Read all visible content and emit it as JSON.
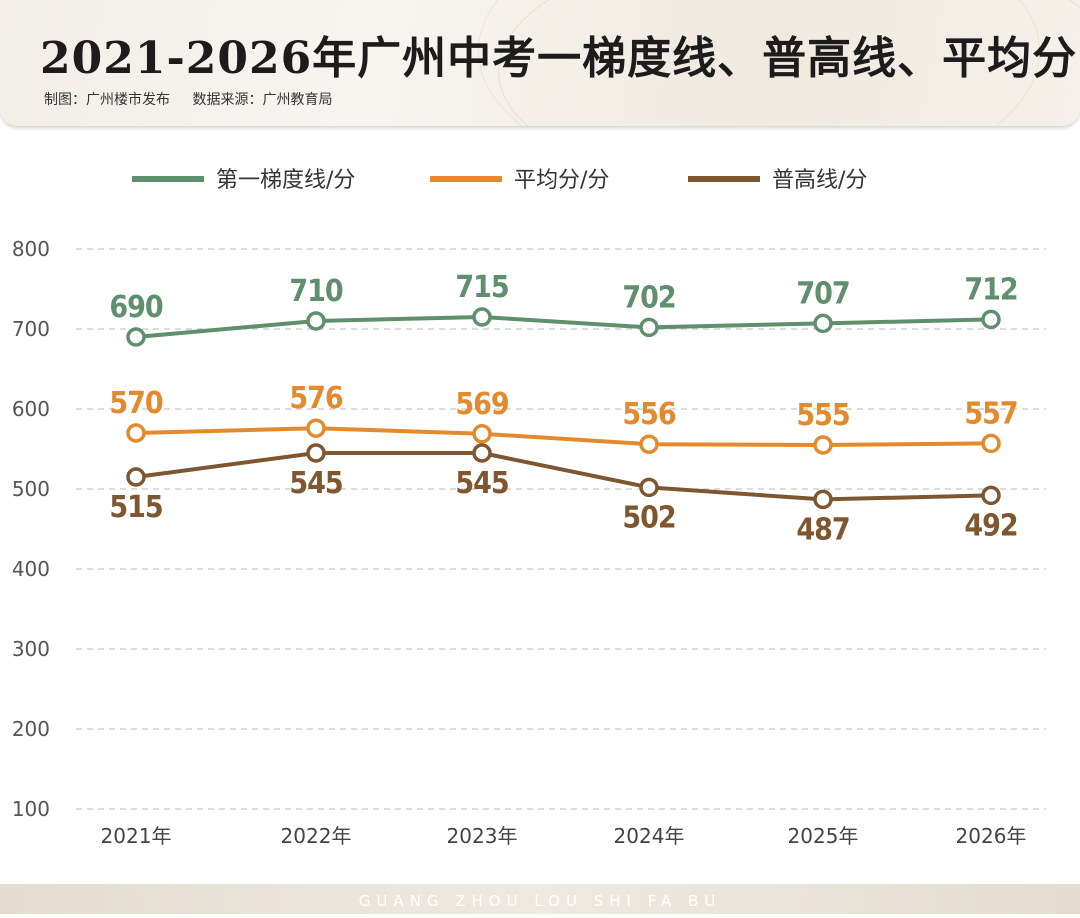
{
  "header": {
    "title": "2021-2026年广州中考一梯度线、普高线、平均分",
    "credit": "制图：广州楼市发布",
    "source": "数据来源：广州教育局"
  },
  "footer": {
    "text": "GUANG ZHOU LOU SHI FA BU"
  },
  "chart_data": {
    "type": "line",
    "categories": [
      "2021年",
      "2022年",
      "2023年",
      "2024年",
      "2025年",
      "2026年"
    ],
    "ylim": [
      100,
      800
    ],
    "yticks": [
      800,
      700,
      600,
      500,
      400,
      300,
      200,
      100
    ],
    "grid": true,
    "legend_position": "top",
    "series": [
      {
        "name": "第一梯度线/分",
        "color": "#5f8f6c",
        "values": [
          690,
          710,
          715,
          702,
          707,
          712
        ],
        "label_pos": "above"
      },
      {
        "name": "平均分/分",
        "color": "#e48a2e",
        "values": [
          570,
          576,
          569,
          556,
          555,
          557
        ],
        "label_pos": "above"
      },
      {
        "name": "普高线/分",
        "color": "#7e5630",
        "values": [
          515,
          545,
          545,
          502,
          487,
          492
        ],
        "label_pos": "below"
      }
    ]
  }
}
